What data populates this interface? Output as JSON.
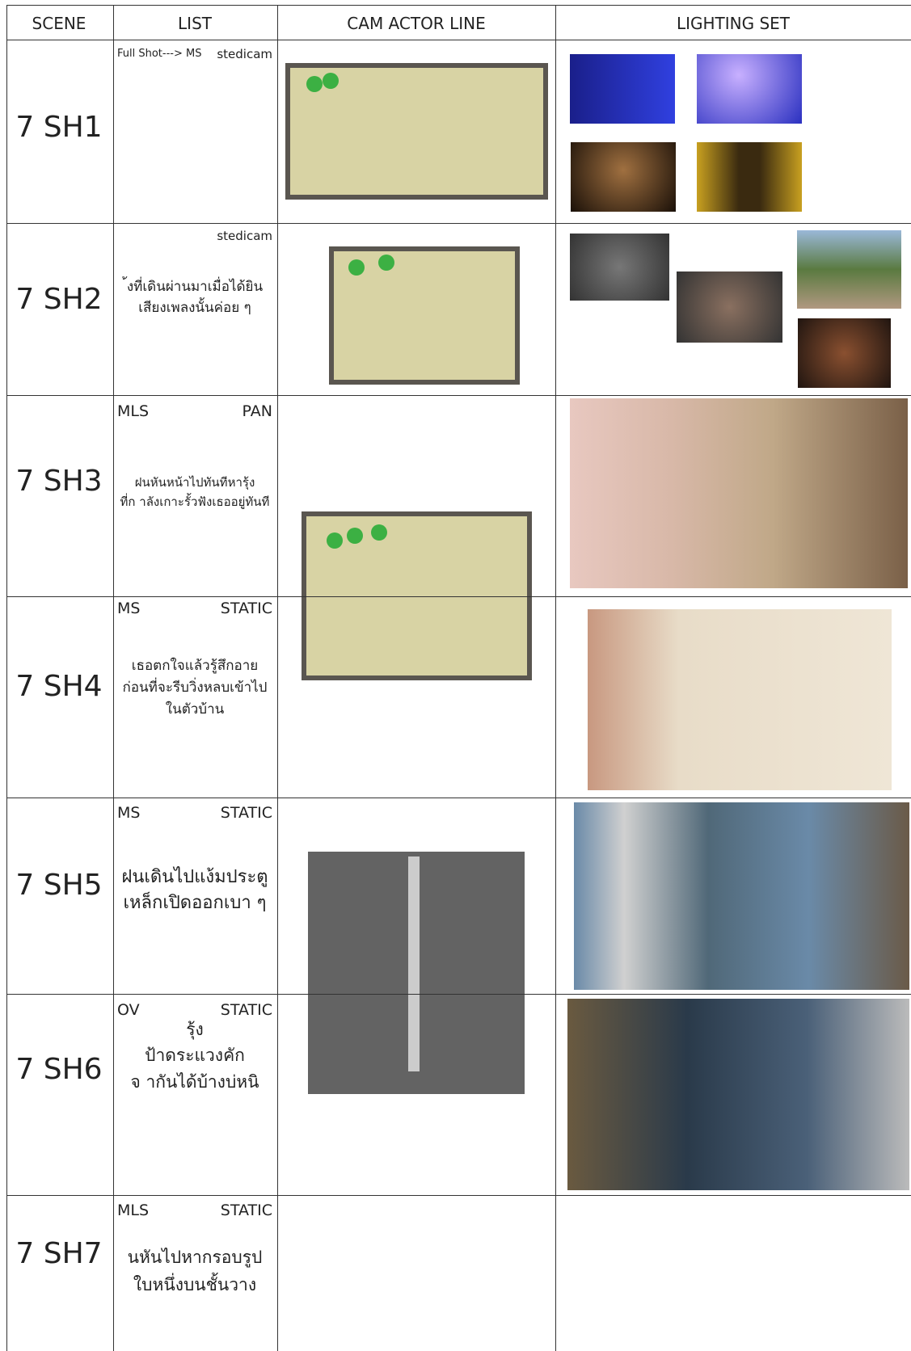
{
  "header": [
    "SCENE",
    "LIST",
    "CAM ACTOR LINE",
    "LIGHTING SET"
  ],
  "rows": [
    {
      "scene": "7 SH1",
      "shot_size": "Full Shot---> MS",
      "camera": "stedicam"
    },
    {
      "scene": "7 SH2",
      "camera": "stedicam",
      "description": [
        "้งที่เดินผ่านมาเมื่อได้ยิน",
        "เสียงเพลงนั้นค่อย ๆ"
      ]
    },
    {
      "scene": "7 SH3",
      "shot_size": "MLS",
      "camera": "PAN",
      "description": [
        "ฝนหันหน้าไปทันทีหารุ้ง",
        "ที่ก าลังเกาะรั้วฟังเธออยู่ทันที"
      ]
    },
    {
      "scene": "7 SH4",
      "shot_size": "MS",
      "camera": "STATIC",
      "description": [
        "เธอตกใจแล้วรู้สึกอาย",
        "ก่อนที่จะรีบวิ่งหลบเข้าไป",
        "ในตัวบ้าน"
      ]
    },
    {
      "scene": "7 SH5",
      "shot_size": "MS",
      "camera": "STATIC",
      "description": [
        "ฝนเดินไปแง้มประตู",
        "เหล็กเปิดออกเบา ๆ"
      ]
    },
    {
      "scene": "7 SH6",
      "shot_size": "OV",
      "camera": "STATIC",
      "description": [
        "รุ้ง",
        "ป้าดระแวงคัก",
        "จ ากันได้บ้างบ่หนิ"
      ]
    },
    {
      "scene": "7 SH7",
      "shot_size": "MLS",
      "camera": "STATIC",
      "description": [
        "นหันไปหากรอบรูป",
        "ใบหนึ่งบนชั้นวาง"
      ]
    }
  ]
}
